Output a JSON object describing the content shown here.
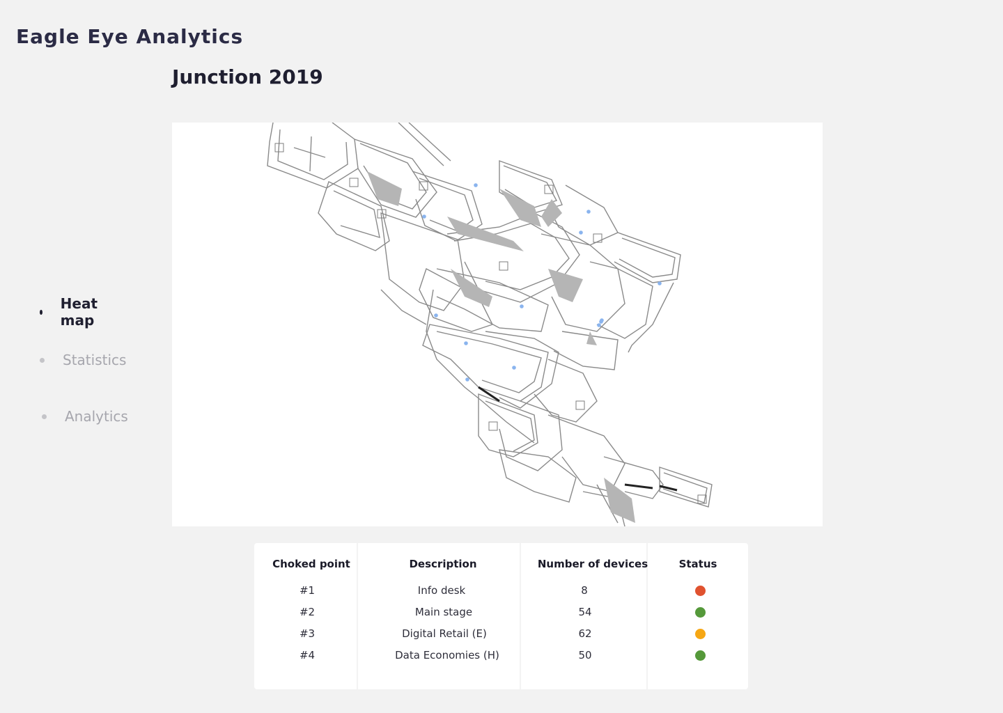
{
  "app": {
    "brand": "Eagle Eye Analytics"
  },
  "page": {
    "title": "Junction 2019"
  },
  "nav": {
    "items": [
      {
        "label": "Heat map",
        "active": true
      },
      {
        "label": "Statistics",
        "active": false
      },
      {
        "label": "Analytics",
        "active": false
      }
    ]
  },
  "map": {
    "device_marker_color": "#8ab4ee",
    "device_count_visible": 17
  },
  "table": {
    "headers": [
      "Choked point",
      "Description",
      "Number of devices",
      "Status"
    ],
    "rows": [
      {
        "point": "#1",
        "description": "Info desk",
        "devices": "8",
        "status": "red",
        "color": "#e0522f"
      },
      {
        "point": "#2",
        "description": "Main stage",
        "devices": "54",
        "status": "green",
        "color": "#55993a"
      },
      {
        "point": "#3",
        "description": "Digital Retail (E)",
        "devices": "62",
        "status": "orange",
        "color": "#f6a714"
      },
      {
        "point": "#4",
        "description": "Data Economies (H)",
        "devices": "50",
        "status": "green",
        "color": "#55993a"
      }
    ]
  }
}
